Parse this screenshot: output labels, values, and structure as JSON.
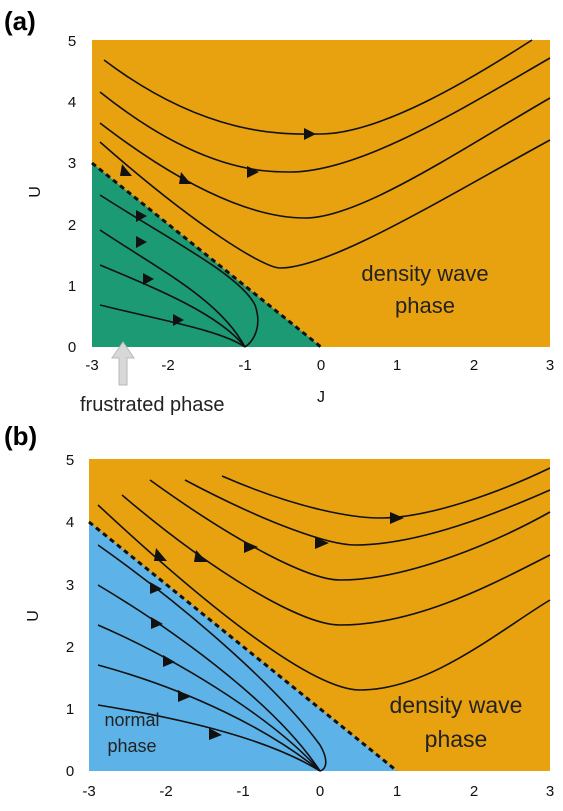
{
  "panels": [
    {
      "label": "(a)",
      "xlabel": "J",
      "ylabel": "U",
      "xticks": [
        "-3",
        "-2",
        "-1",
        "0",
        "1",
        "2",
        "3"
      ],
      "yticks": [
        "0",
        "1",
        "2",
        "3",
        "4",
        "5"
      ],
      "region_labels": {
        "density_wave_line1": "density wave",
        "density_wave_line2": "phase",
        "lower_line1": "frustrated phase",
        "lower_line2": ""
      },
      "colors": {
        "upper": "#E8A10F",
        "lower": "#1B9A73"
      }
    },
    {
      "label": "(b)",
      "xlabel": "",
      "ylabel": "U",
      "xticks": [
        "-3",
        "-2",
        "-1",
        "0",
        "1",
        "2",
        "3"
      ],
      "yticks": [
        "0",
        "1",
        "2",
        "3",
        "4",
        "5"
      ],
      "region_labels": {
        "density_wave_line1": "density wave",
        "density_wave_line2": "phase",
        "lower_line1": "normal",
        "lower_line2": "phase"
      },
      "colors": {
        "upper": "#E8A10F",
        "lower": "#5DB3E8"
      }
    }
  ],
  "arrow_icon": "up-arrow-icon"
}
